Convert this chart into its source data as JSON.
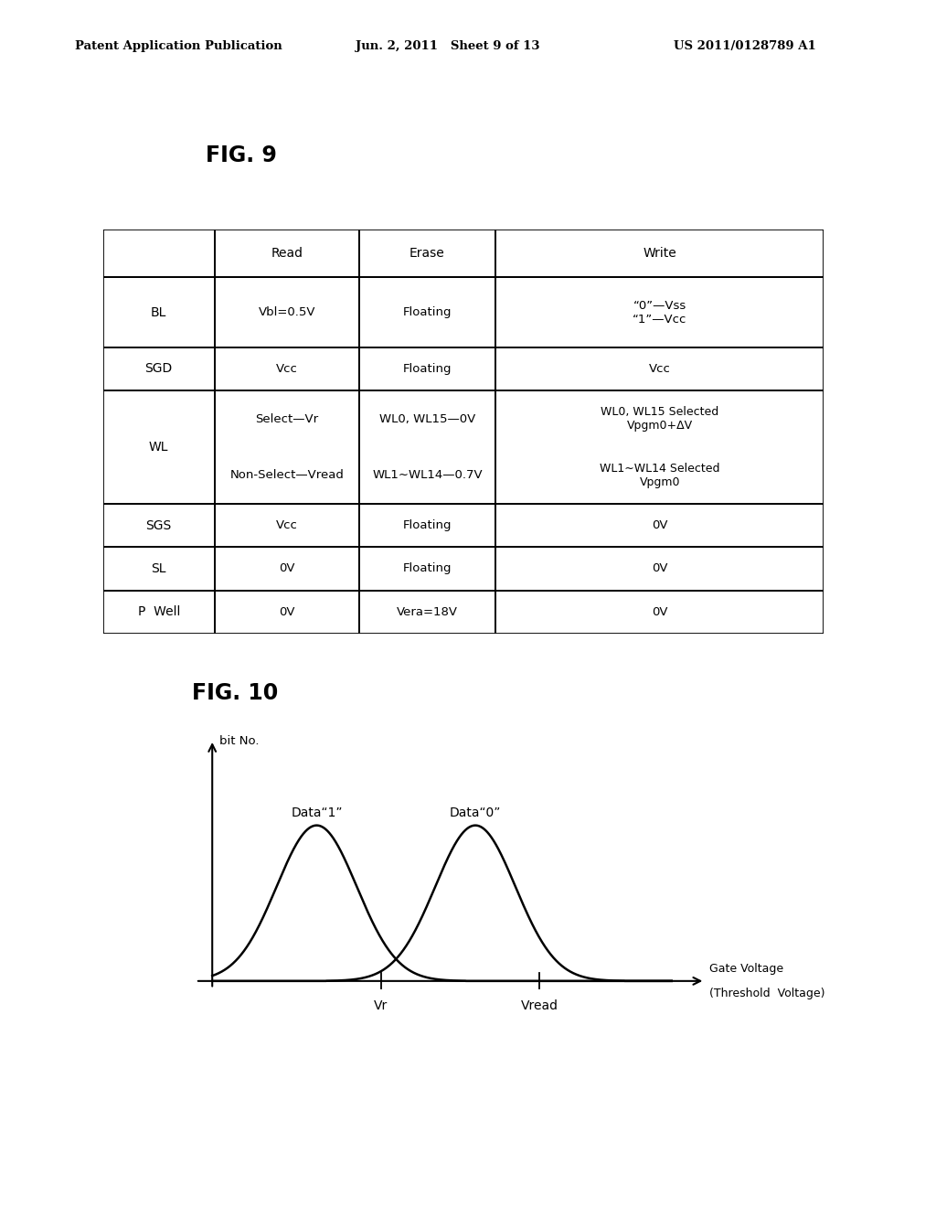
{
  "header_left": "Patent Application Publication",
  "header_mid": "Jun. 2, 2011   Sheet 9 of 13",
  "header_right": "US 2011/0128789 A1",
  "fig9_label": "FIG. 9",
  "fig10_label": "FIG. 10",
  "table": {
    "rows": [
      {
        "label": "BL",
        "read": "Vbl=0.5V",
        "erase": "Floating",
        "write": "“0”—Vss\n“1”—Vcc"
      },
      {
        "label": "SGD",
        "read": "Vcc",
        "erase": "Floating",
        "write": "Vcc"
      },
      {
        "label": "WL",
        "read_top": "Select—Vr",
        "read_bot": "Non-Select—Vread",
        "erase_top": "WL0, WL15—0V",
        "erase_bot": "WL1∼WL14—0.7V",
        "write_top": "WL0, WL15 Selected\nVpgm0+ΔV",
        "write_bot": "WL1∼WL14 Selected\nVpgm0"
      },
      {
        "label": "SGS",
        "read": "Vcc",
        "erase": "Floating",
        "write": "0V"
      },
      {
        "label": "SL",
        "read": "0V",
        "erase": "Floating",
        "write": "0V"
      },
      {
        "label": "P  Well",
        "read": "0V",
        "erase": "Vera=18V",
        "write": "0V"
      }
    ]
  },
  "graph": {
    "xlabel_line1": "Gate Voltage",
    "xlabel_line2": "(Threshold  Voltage)",
    "ylabel": "bit No.",
    "label1": "Data“1”",
    "label0": "Data“0”",
    "vr_label": "Vr",
    "vread_label": "Vread"
  },
  "bg_color": "#ffffff",
  "line_color": "#000000"
}
